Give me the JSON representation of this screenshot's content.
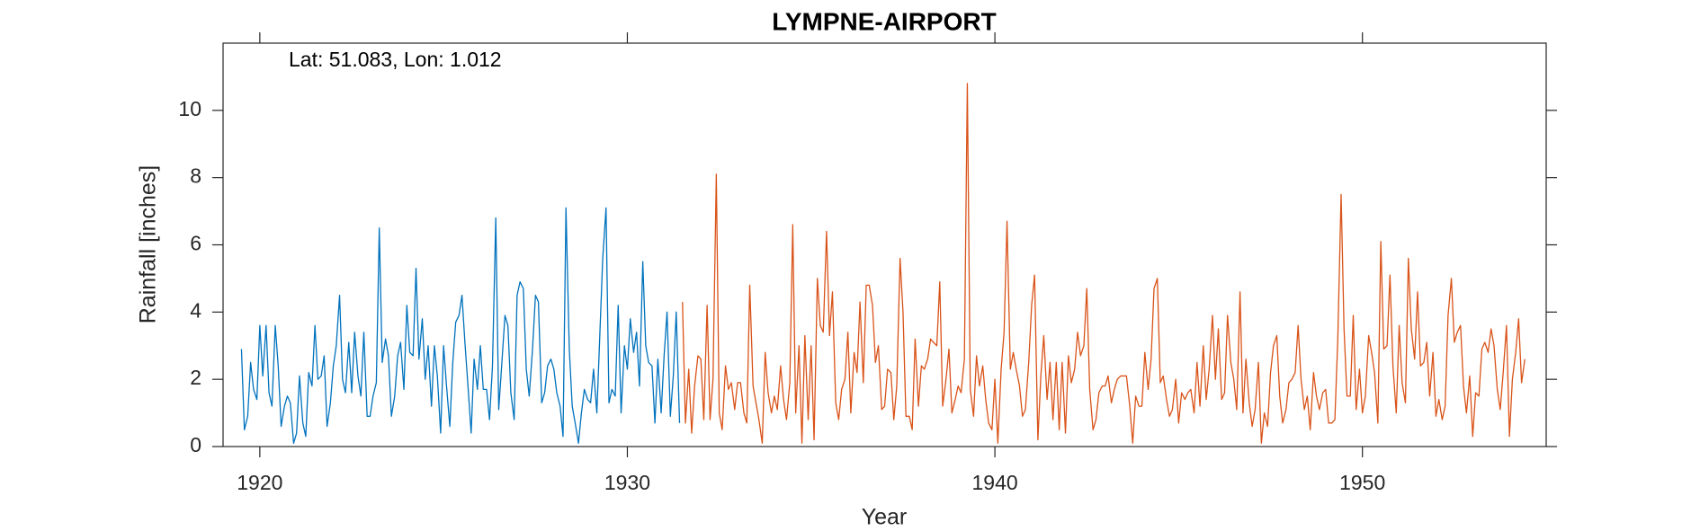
{
  "chart_data": {
    "type": "line",
    "title": "LYMPNE-AIRPORT",
    "annotation": "Lat: 51.083, Lon: 1.012",
    "x_label": "Year",
    "y_label": "Rainfall [inches]",
    "xlim": [
      1919,
      1955
    ],
    "xticks": [
      1920,
      1930,
      1940,
      1950
    ],
    "ylim": [
      0,
      12
    ],
    "yticks": [
      0,
      2,
      4,
      6,
      8,
      10
    ],
    "series": [
      {
        "color": "#0072bd",
        "x": [
          1919.5,
          1919.58,
          1919.67,
          1919.75,
          1919.83,
          1919.92,
          1920.0,
          1920.08,
          1920.17,
          1920.25,
          1920.33,
          1920.42,
          1920.5,
          1920.58,
          1920.67,
          1920.75,
          1920.83,
          1920.92,
          1921.0,
          1921.08,
          1921.17,
          1921.25,
          1921.33,
          1921.42,
          1921.5,
          1921.58,
          1921.67,
          1921.75,
          1921.83,
          1921.92,
          1922.0,
          1922.08,
          1922.17,
          1922.25,
          1922.33,
          1922.42,
          1922.5,
          1922.58,
          1922.67,
          1922.75,
          1922.83,
          1922.92,
          1923.0,
          1923.08,
          1923.17,
          1923.25,
          1923.33,
          1923.42,
          1923.5,
          1923.58,
          1923.67,
          1923.75,
          1923.83,
          1923.92,
          1924.0,
          1924.08,
          1924.17,
          1924.25,
          1924.33,
          1924.42,
          1924.5,
          1924.58,
          1924.67,
          1924.75,
          1924.83,
          1924.92,
          1925.0,
          1925.08,
          1925.17,
          1925.25,
          1925.33,
          1925.42,
          1925.5,
          1925.58,
          1925.67,
          1925.75,
          1925.83,
          1925.92,
          1926.0,
          1926.08,
          1926.17,
          1926.25,
          1926.33,
          1926.42,
          1926.5,
          1926.58,
          1926.67,
          1926.75,
          1926.83,
          1926.92,
          1927.0,
          1927.08,
          1927.17,
          1927.25,
          1927.33,
          1927.42,
          1927.5,
          1927.58,
          1927.67,
          1927.75,
          1927.83,
          1927.92,
          1928.0,
          1928.08,
          1928.17,
          1928.25,
          1928.33,
          1928.42,
          1928.5,
          1928.58,
          1928.67,
          1928.75,
          1928.83,
          1928.92,
          1929.0,
          1929.08,
          1929.17,
          1929.25,
          1929.33,
          1929.42,
          1929.5,
          1929.58,
          1929.67,
          1929.75,
          1929.83,
          1929.92,
          1930.0,
          1930.08,
          1930.17,
          1930.25,
          1930.33,
          1930.42,
          1930.5,
          1930.58,
          1930.67,
          1930.75,
          1930.83,
          1930.92,
          1931.0,
          1931.08,
          1931.17,
          1931.25,
          1931.33,
          1931.42
        ],
        "values": [
          2.9,
          0.5,
          0.9,
          2.5,
          1.7,
          1.4,
          3.6,
          2.1,
          3.6,
          1.6,
          1.2,
          3.6,
          2.4,
          0.6,
          1.2,
          1.5,
          1.3,
          0.1,
          0.4,
          2.1,
          0.7,
          0.3,
          2.2,
          1.8,
          3.6,
          2.0,
          2.1,
          2.7,
          0.6,
          1.3,
          2.4,
          3.0,
          4.5,
          2.0,
          1.6,
          3.1,
          1.6,
          3.4,
          2.1,
          1.5,
          3.4,
          0.9,
          0.9,
          1.5,
          1.9,
          6.5,
          2.5,
          3.2,
          2.7,
          0.9,
          1.5,
          2.7,
          3.1,
          1.7,
          4.2,
          2.8,
          2.7,
          5.3,
          2.6,
          3.8,
          2.0,
          3.0,
          1.2,
          3.0,
          2.1,
          0.4,
          3.0,
          1.8,
          0.6,
          2.5,
          3.7,
          3.9,
          4.5,
          3.1,
          1.7,
          0.4,
          2.6,
          1.7,
          3.0,
          1.7,
          1.7,
          0.8,
          2.4,
          6.8,
          1.1,
          2.4,
          3.9,
          3.6,
          1.6,
          0.8,
          4.5,
          4.9,
          4.7,
          2.3,
          1.5,
          2.9,
          4.5,
          4.3,
          1.3,
          1.6,
          2.4,
          2.6,
          2.3,
          1.6,
          1.2,
          0.3,
          7.1,
          2.9,
          1.2,
          0.7,
          0.1,
          1.0,
          1.7,
          1.4,
          1.3,
          2.3,
          1.0,
          3.3,
          5.6,
          7.1,
          1.3,
          1.7,
          1.5,
          4.2,
          1.0,
          3.0,
          2.3,
          3.8,
          2.8,
          3.4,
          1.8,
          5.5,
          3.0,
          2.5,
          2.4,
          0.7,
          2.6,
          1.0,
          2.7,
          4.0,
          0.9,
          2.1,
          4.0,
          0.7
        ]
      },
      {
        "color": "#d95319",
        "x": [
          1931.5,
          1931.58,
          1931.67,
          1931.75,
          1931.83,
          1931.92,
          1932.0,
          1932.08,
          1932.17,
          1932.25,
          1932.33,
          1932.42,
          1932.5,
          1932.58,
          1932.67,
          1932.75,
          1932.83,
          1932.92,
          1933.0,
          1933.08,
          1933.17,
          1933.25,
          1933.33,
          1933.42,
          1933.5,
          1933.58,
          1933.67,
          1933.75,
          1933.83,
          1933.92,
          1934.0,
          1934.08,
          1934.17,
          1934.25,
          1934.33,
          1934.42,
          1934.5,
          1934.58,
          1934.67,
          1934.75,
          1934.83,
          1934.92,
          1935.0,
          1935.08,
          1935.17,
          1935.25,
          1935.33,
          1935.42,
          1935.5,
          1935.58,
          1935.67,
          1935.75,
          1935.83,
          1935.92,
          1936.0,
          1936.08,
          1936.17,
          1936.25,
          1936.33,
          1936.42,
          1936.5,
          1936.58,
          1936.67,
          1936.75,
          1936.83,
          1936.92,
          1937.0,
          1937.08,
          1937.17,
          1937.25,
          1937.33,
          1937.42,
          1937.5,
          1937.58,
          1937.67,
          1937.75,
          1937.83,
          1937.92,
          1938.0,
          1938.08,
          1938.17,
          1938.25,
          1938.33,
          1938.42,
          1938.5,
          1938.58,
          1938.67,
          1938.75,
          1938.83,
          1938.92,
          1939.0,
          1939.08,
          1939.17,
          1939.25,
          1939.33,
          1939.42,
          1939.5,
          1939.58,
          1939.67,
          1939.75,
          1939.83,
          1939.92,
          1940.0,
          1940.08,
          1940.17,
          1940.25,
          1940.33,
          1940.42,
          1940.5,
          1940.58,
          1940.67,
          1940.75,
          1940.83,
          1940.92,
          1941.0,
          1941.08,
          1941.17,
          1941.25,
          1941.33,
          1941.42,
          1941.5,
          1941.58,
          1941.67,
          1941.75,
          1941.83,
          1941.92,
          1942.0,
          1942.08,
          1942.17,
          1942.25,
          1942.33,
          1942.42,
          1942.5,
          1942.58,
          1942.67,
          1942.75,
          1942.83,
          1942.92,
          1943.0,
          1943.08,
          1943.17,
          1943.25,
          1943.33,
          1943.42,
          1943.5,
          1943.58,
          1943.67,
          1943.75,
          1943.83,
          1943.92,
          1944.0,
          1944.08,
          1944.17,
          1944.25,
          1944.33,
          1944.42,
          1944.5,
          1944.58,
          1944.67,
          1944.75,
          1944.83,
          1944.92,
          1945.0,
          1945.08,
          1945.17,
          1945.25,
          1945.33,
          1945.42,
          1945.5,
          1945.58,
          1945.67,
          1945.75,
          1945.83,
          1945.92,
          1946.0,
          1946.08,
          1946.17,
          1946.25,
          1946.33,
          1946.42,
          1946.5,
          1946.58,
          1946.67,
          1946.75,
          1946.83,
          1946.92,
          1947.0,
          1947.08,
          1947.17,
          1947.25,
          1947.33,
          1947.42,
          1947.5,
          1947.58,
          1947.67,
          1947.75,
          1947.83,
          1947.92,
          1948.0,
          1948.08,
          1948.17,
          1948.25,
          1948.33,
          1948.42,
          1948.5,
          1948.58,
          1948.67,
          1948.75,
          1948.83,
          1948.92,
          1949.0,
          1949.08,
          1949.17,
          1949.25,
          1949.33,
          1949.42,
          1949.5,
          1949.58,
          1949.67,
          1949.75,
          1949.83,
          1949.92,
          1950.0,
          1950.08,
          1950.17,
          1950.25,
          1950.33,
          1950.42,
          1950.5,
          1950.58,
          1950.67,
          1950.75,
          1950.83,
          1950.92,
          1951.0,
          1951.08,
          1951.17,
          1951.25,
          1951.33,
          1951.42,
          1951.5,
          1951.58,
          1951.67,
          1951.75,
          1951.83,
          1951.92,
          1952.0,
          1952.08,
          1952.17,
          1952.25,
          1952.33,
          1952.42,
          1952.5,
          1952.58,
          1952.67,
          1952.75,
          1952.83,
          1952.92,
          1953.0,
          1953.08,
          1953.17,
          1953.25,
          1953.33,
          1953.42,
          1953.5,
          1953.58,
          1953.67,
          1953.75,
          1953.83,
          1953.92,
          1954.0,
          1954.08,
          1954.17,
          1954.25,
          1954.33,
          1954.42
        ],
        "values": [
          4.3,
          0.7,
          2.3,
          0.4,
          1.8,
          2.7,
          2.6,
          0.8,
          4.2,
          0.8,
          2.0,
          8.1,
          1.0,
          0.5,
          2.4,
          1.7,
          1.9,
          1.1,
          1.9,
          1.9,
          1.0,
          0.7,
          4.8,
          1.8,
          1.3,
          0.8,
          0.1,
          2.8,
          1.6,
          1.0,
          1.5,
          1.1,
          2.4,
          1.4,
          0.8,
          1.9,
          6.6,
          1.0,
          3.0,
          0.1,
          3.3,
          0.8,
          3.0,
          0.2,
          5.0,
          3.6,
          3.4,
          6.4,
          3.3,
          4.6,
          1.3,
          0.8,
          1.7,
          2.0,
          3.4,
          1.0,
          2.8,
          2.2,
          4.3,
          1.9,
          4.8,
          4.8,
          4.2,
          2.5,
          3.0,
          1.1,
          1.2,
          2.3,
          2.2,
          0.8,
          1.8,
          5.6,
          4.0,
          0.9,
          0.9,
          0.5,
          3.2,
          1.2,
          2.4,
          2.3,
          2.6,
          3.2,
          3.1,
          3.0,
          4.9,
          1.2,
          2.0,
          2.9,
          1.0,
          1.4,
          1.8,
          1.6,
          2.6,
          10.8,
          1.7,
          0.9,
          2.7,
          1.8,
          2.4,
          1.4,
          0.7,
          0.5,
          2.0,
          0.1,
          2.3,
          3.4,
          6.7,
          2.3,
          2.8,
          2.3,
          1.8,
          0.9,
          1.1,
          2.5,
          4.2,
          5.1,
          0.2,
          2.1,
          3.3,
          1.4,
          2.5,
          0.8,
          2.5,
          0.5,
          2.5,
          0.4,
          2.7,
          1.9,
          2.3,
          3.4,
          2.7,
          3.0,
          4.7,
          1.7,
          0.5,
          0.8,
          1.6,
          1.8,
          1.8,
          2.1,
          1.3,
          1.7,
          2.0,
          2.1,
          2.1,
          2.1,
          1.2,
          0.1,
          1.5,
          1.2,
          1.2,
          2.8,
          1.7,
          2.6,
          4.7,
          5.0,
          1.9,
          2.1,
          1.4,
          0.9,
          1.1,
          2.0,
          0.7,
          1.6,
          1.4,
          1.6,
          1.7,
          1.0,
          2.5,
          1.2,
          3.0,
          1.4,
          2.3,
          3.9,
          2.0,
          3.5,
          1.4,
          1.6,
          3.9,
          2.5,
          2.0,
          1.1,
          4.6,
          1.0,
          2.6,
          1.3,
          0.6,
          1.1,
          2.5,
          0.1,
          1.0,
          0.6,
          2.2,
          3.0,
          3.3,
          1.5,
          0.7,
          1.1,
          1.9,
          2.0,
          2.2,
          3.6,
          2.0,
          1.1,
          1.5,
          0.5,
          2.2,
          1.5,
          1.1,
          1.6,
          1.7,
          0.7,
          0.7,
          0.8,
          3.2,
          7.5,
          3.5,
          1.5,
          1.5,
          3.9,
          1.1,
          2.3,
          1.0,
          1.5,
          3.3,
          2.8,
          2.2,
          0.7,
          6.1,
          2.9,
          3.0,
          5.1,
          2.4,
          1.0,
          3.6,
          1.9,
          1.3,
          5.6,
          3.5,
          2.6,
          4.6,
          2.4,
          2.5,
          3.1,
          1.5,
          2.8,
          0.9,
          1.4,
          0.8,
          1.2,
          3.9,
          5.0,
          3.1,
          3.4,
          3.6,
          1.8,
          1.0,
          2.1,
          0.3,
          1.6,
          1.5,
          2.9,
          3.1,
          2.8,
          3.5,
          3.0,
          1.7,
          1.1,
          2.2,
          3.6,
          0.3,
          2.0,
          2.8,
          3.8,
          1.9,
          2.6
        ]
      }
    ]
  }
}
